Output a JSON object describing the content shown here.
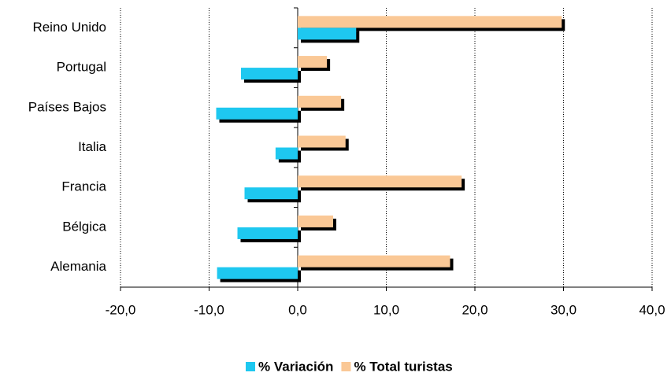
{
  "chart_data": {
    "type": "hbar",
    "categories": [
      "Reino Unido",
      "Portugal",
      "Países Bajos",
      "Italia",
      "Francia",
      "Bélgica",
      "Alemania"
    ],
    "series": [
      {
        "name": "% Variación",
        "color": "#1ec8f0",
        "values": [
          6.6,
          -6.4,
          -9.2,
          -2.5,
          -6.0,
          -6.8,
          -9.1
        ]
      },
      {
        "name": "% Total turistas",
        "color": "#fac896",
        "values": [
          29.8,
          3.3,
          4.9,
          5.4,
          18.5,
          4.0,
          17.2
        ]
      }
    ],
    "xlim": [
      -20,
      40
    ],
    "xticks": [
      {
        "value": -20,
        "label": "-20,0"
      },
      {
        "value": -10,
        "label": "-10,0"
      },
      {
        "value": 0,
        "label": "0,0"
      },
      {
        "value": 10,
        "label": "10,0"
      },
      {
        "value": 20,
        "label": "20,0"
      },
      {
        "value": 30,
        "label": "30,0"
      },
      {
        "value": 40,
        "label": "40,0"
      }
    ],
    "grid": true,
    "legend": "bottom"
  }
}
